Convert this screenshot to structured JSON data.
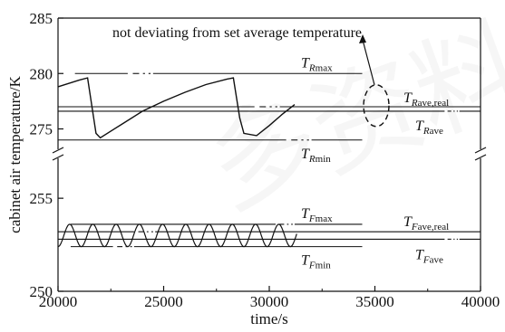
{
  "chart_data": {
    "type": "line",
    "xlabel": "time/s",
    "ylabel": "cabinet air temperature/K",
    "xlim": [
      20000,
      40000
    ],
    "x_ticks": [
      20000,
      25000,
      30000,
      35000,
      40000
    ],
    "y_ticks_upper": [
      275,
      280,
      285
    ],
    "y_ticks_lower": [
      250,
      255
    ],
    "broken_y_axis": true,
    "upper_ylim": [
      273,
      285
    ],
    "lower_ylim": [
      250,
      257
    ],
    "grid": false,
    "annotation": "not deviating from set average temperature",
    "reference_lines": [
      {
        "symbol": "T",
        "sub": "R",
        "sub2": "max",
        "value": 280.0
      },
      {
        "symbol": "T",
        "sub": "R",
        "sub2": "ave,real",
        "value": 277.0
      },
      {
        "symbol": "T",
        "sub": "R",
        "sub2": "ave",
        "value": 276.6
      },
      {
        "symbol": "T",
        "sub": "R",
        "sub2": "min",
        "value": 274.0
      },
      {
        "symbol": "T",
        "sub": "F",
        "sub2": "max",
        "value": 253.6
      },
      {
        "symbol": "T",
        "sub": "F",
        "sub2": "ave,real",
        "value": 253.2
      },
      {
        "symbol": "T",
        "sub": "F",
        "sub2": "ave",
        "value": 252.8
      },
      {
        "symbol": "T",
        "sub": "F",
        "sub2": "min",
        "value": 252.4
      }
    ],
    "series": [
      {
        "x": [
          20000,
          21000,
          21400,
          21800,
          22000,
          23000,
          24000,
          25000,
          26000,
          27000,
          28000,
          28300,
          28600,
          28800,
          29400,
          30000,
          30600,
          31200
        ],
        "y": [
          278.8,
          279.4,
          279.6,
          274.6,
          274.2,
          275.4,
          276.6,
          277.5,
          278.3,
          279.0,
          279.5,
          279.6,
          276.0,
          274.6,
          274.4,
          275.3,
          276.3,
          277.2
        ]
      },
      {
        "period": 1100,
        "x_start": 20000,
        "x_end": 31300,
        "y_min": 252.4,
        "y_max": 253.6
      }
    ]
  }
}
